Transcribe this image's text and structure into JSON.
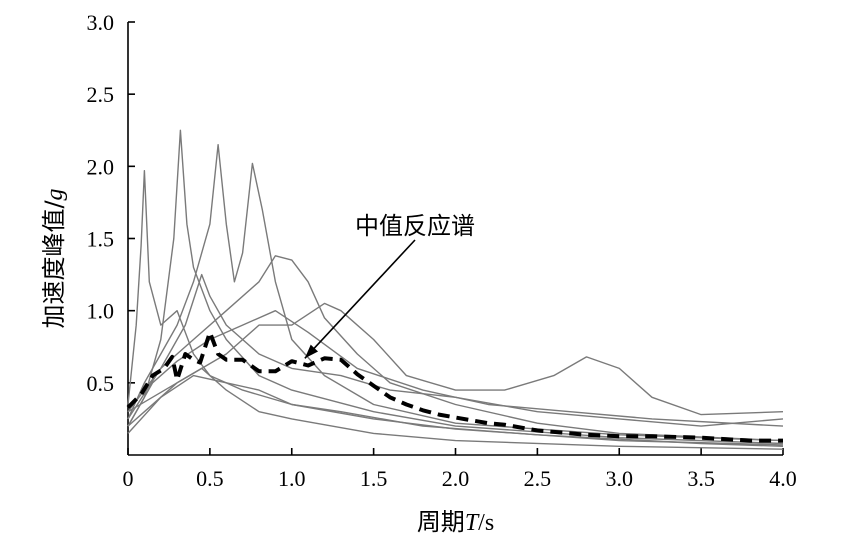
{
  "chart_data": {
    "type": "line",
    "xlabel": "周期T/s",
    "xlabel_parts": {
      "prefix": "周期",
      "var": "T",
      "suffix": "/s"
    },
    "ylabel": "加速度峰值/g",
    "ylabel_parts": {
      "prefix": "加速度峰值/",
      "var": "g"
    },
    "xlim": [
      0,
      4.0
    ],
    "ylim": [
      0,
      3.0
    ],
    "x_ticks": [
      "0",
      "0.5",
      "1.0",
      "1.5",
      "2.0",
      "2.5",
      "3.0",
      "3.5",
      "4.0"
    ],
    "y_ticks": [
      "0.5",
      "1.0",
      "1.5",
      "2.0",
      "2.5",
      "3.0"
    ],
    "grid": false,
    "annotation": {
      "text": "中值反应谱",
      "arrow_to": [
        1.08,
        0.67
      ]
    },
    "colors": {
      "records": "#7a7a7a",
      "median": "#000000"
    },
    "series": [
      {
        "style": "dashed-median",
        "points": [
          [
            0,
            0.33
          ],
          [
            0.08,
            0.42
          ],
          [
            0.15,
            0.55
          ],
          [
            0.22,
            0.6
          ],
          [
            0.27,
            0.68
          ],
          [
            0.3,
            0.52
          ],
          [
            0.35,
            0.7
          ],
          [
            0.4,
            0.66
          ],
          [
            0.44,
            0.64
          ],
          [
            0.5,
            0.85
          ],
          [
            0.55,
            0.7
          ],
          [
            0.6,
            0.66
          ],
          [
            0.7,
            0.66
          ],
          [
            0.8,
            0.58
          ],
          [
            0.9,
            0.58
          ],
          [
            1.0,
            0.65
          ],
          [
            1.1,
            0.62
          ],
          [
            1.2,
            0.67
          ],
          [
            1.3,
            0.66
          ],
          [
            1.4,
            0.56
          ],
          [
            1.5,
            0.48
          ],
          [
            1.6,
            0.4
          ],
          [
            1.7,
            0.35
          ],
          [
            1.8,
            0.31
          ],
          [
            1.9,
            0.28
          ],
          [
            2.0,
            0.26
          ],
          [
            2.1,
            0.24
          ],
          [
            2.2,
            0.22
          ],
          [
            2.3,
            0.21
          ],
          [
            2.4,
            0.19
          ],
          [
            2.5,
            0.17
          ],
          [
            2.6,
            0.16
          ],
          [
            2.8,
            0.14
          ],
          [
            3.0,
            0.13
          ],
          [
            3.2,
            0.13
          ],
          [
            3.5,
            0.12
          ],
          [
            3.8,
            0.1
          ],
          [
            4.0,
            0.1
          ]
        ]
      },
      {
        "style": "record",
        "points": [
          [
            0,
            0.35
          ],
          [
            0.05,
            0.9
          ],
          [
            0.08,
            1.45
          ],
          [
            0.1,
            1.97
          ],
          [
            0.13,
            1.2
          ],
          [
            0.2,
            0.9
          ],
          [
            0.3,
            1.0
          ],
          [
            0.4,
            0.7
          ],
          [
            0.5,
            0.55
          ],
          [
            0.7,
            0.45
          ],
          [
            1.0,
            0.35
          ],
          [
            1.5,
            0.25
          ],
          [
            2.0,
            0.18
          ],
          [
            3.0,
            0.1
          ],
          [
            4.0,
            0.07
          ]
        ]
      },
      {
        "style": "record",
        "points": [
          [
            0,
            0.2
          ],
          [
            0.1,
            0.4
          ],
          [
            0.2,
            0.8
          ],
          [
            0.28,
            1.5
          ],
          [
            0.32,
            2.25
          ],
          [
            0.36,
            1.6
          ],
          [
            0.4,
            1.3
          ],
          [
            0.5,
            1.0
          ],
          [
            0.6,
            0.8
          ],
          [
            0.8,
            0.55
          ],
          [
            1.0,
            0.45
          ],
          [
            1.5,
            0.3
          ],
          [
            2.0,
            0.2
          ],
          [
            3.0,
            0.12
          ],
          [
            4.0,
            0.08
          ]
        ]
      },
      {
        "style": "record",
        "points": [
          [
            0,
            0.25
          ],
          [
            0.1,
            0.5
          ],
          [
            0.2,
            0.7
          ],
          [
            0.3,
            0.9
          ],
          [
            0.4,
            1.2
          ],
          [
            0.5,
            1.6
          ],
          [
            0.55,
            2.15
          ],
          [
            0.6,
            1.6
          ],
          [
            0.65,
            1.2
          ],
          [
            0.7,
            1.4
          ],
          [
            0.76,
            2.02
          ],
          [
            0.82,
            1.7
          ],
          [
            0.9,
            1.2
          ],
          [
            1.0,
            0.8
          ],
          [
            1.2,
            0.55
          ],
          [
            1.5,
            0.35
          ],
          [
            2.0,
            0.22
          ],
          [
            3.0,
            0.14
          ],
          [
            4.0,
            0.1
          ]
        ]
      },
      {
        "style": "record",
        "points": [
          [
            0,
            0.3
          ],
          [
            0.2,
            0.6
          ],
          [
            0.4,
            0.8
          ],
          [
            0.6,
            1.0
          ],
          [
            0.8,
            1.2
          ],
          [
            0.9,
            1.38
          ],
          [
            1.0,
            1.35
          ],
          [
            1.1,
            1.2
          ],
          [
            1.2,
            0.95
          ],
          [
            1.4,
            0.7
          ],
          [
            1.6,
            0.5
          ],
          [
            2.0,
            0.35
          ],
          [
            2.5,
            0.22
          ],
          [
            3.0,
            0.15
          ],
          [
            4.0,
            0.1
          ]
        ]
      },
      {
        "style": "record",
        "points": [
          [
            0,
            0.3
          ],
          [
            0.3,
            0.5
          ],
          [
            0.6,
            0.7
          ],
          [
            0.8,
            0.9
          ],
          [
            1.0,
            0.9
          ],
          [
            1.2,
            1.05
          ],
          [
            1.3,
            1.0
          ],
          [
            1.5,
            0.8
          ],
          [
            1.7,
            0.55
          ],
          [
            2.0,
            0.45
          ],
          [
            2.3,
            0.45
          ],
          [
            2.6,
            0.55
          ],
          [
            2.8,
            0.68
          ],
          [
            3.0,
            0.6
          ],
          [
            3.2,
            0.4
          ],
          [
            3.5,
            0.28
          ],
          [
            4.0,
            0.3
          ]
        ]
      },
      {
        "style": "record",
        "points": [
          [
            0,
            0.25
          ],
          [
            0.2,
            0.6
          ],
          [
            0.35,
            0.9
          ],
          [
            0.45,
            1.25
          ],
          [
            0.5,
            1.1
          ],
          [
            0.6,
            0.9
          ],
          [
            0.8,
            0.7
          ],
          [
            1.0,
            0.6
          ],
          [
            1.3,
            0.55
          ],
          [
            1.6,
            0.45
          ],
          [
            2.0,
            0.4
          ],
          [
            2.5,
            0.3
          ],
          [
            3.0,
            0.25
          ],
          [
            3.5,
            0.2
          ],
          [
            4.0,
            0.25
          ]
        ]
      },
      {
        "style": "record",
        "points": [
          [
            0,
            0.2
          ],
          [
            0.15,
            0.5
          ],
          [
            0.3,
            0.65
          ],
          [
            0.5,
            0.8
          ],
          [
            0.7,
            0.9
          ],
          [
            0.9,
            1.0
          ],
          [
            1.1,
            0.85
          ],
          [
            1.4,
            0.6
          ],
          [
            1.8,
            0.45
          ],
          [
            2.2,
            0.35
          ],
          [
            2.7,
            0.3
          ],
          [
            3.2,
            0.25
          ],
          [
            4.0,
            0.2
          ]
        ]
      },
      {
        "style": "record",
        "points": [
          [
            0,
            0.15
          ],
          [
            0.2,
            0.4
          ],
          [
            0.4,
            0.55
          ],
          [
            0.6,
            0.5
          ],
          [
            0.8,
            0.45
          ],
          [
            1.0,
            0.35
          ],
          [
            1.3,
            0.3
          ],
          [
            1.8,
            0.2
          ],
          [
            2.5,
            0.14
          ],
          [
            3.5,
            0.08
          ],
          [
            4.0,
            0.06
          ]
        ]
      },
      {
        "style": "record",
        "points": [
          [
            0,
            0.2
          ],
          [
            0.1,
            0.3
          ],
          [
            0.3,
            0.5
          ],
          [
            0.45,
            0.6
          ],
          [
            0.6,
            0.45
          ],
          [
            0.8,
            0.3
          ],
          [
            1.0,
            0.25
          ],
          [
            1.5,
            0.15
          ],
          [
            2.0,
            0.1
          ],
          [
            3.0,
            0.06
          ],
          [
            4.0,
            0.04
          ]
        ]
      }
    ]
  }
}
